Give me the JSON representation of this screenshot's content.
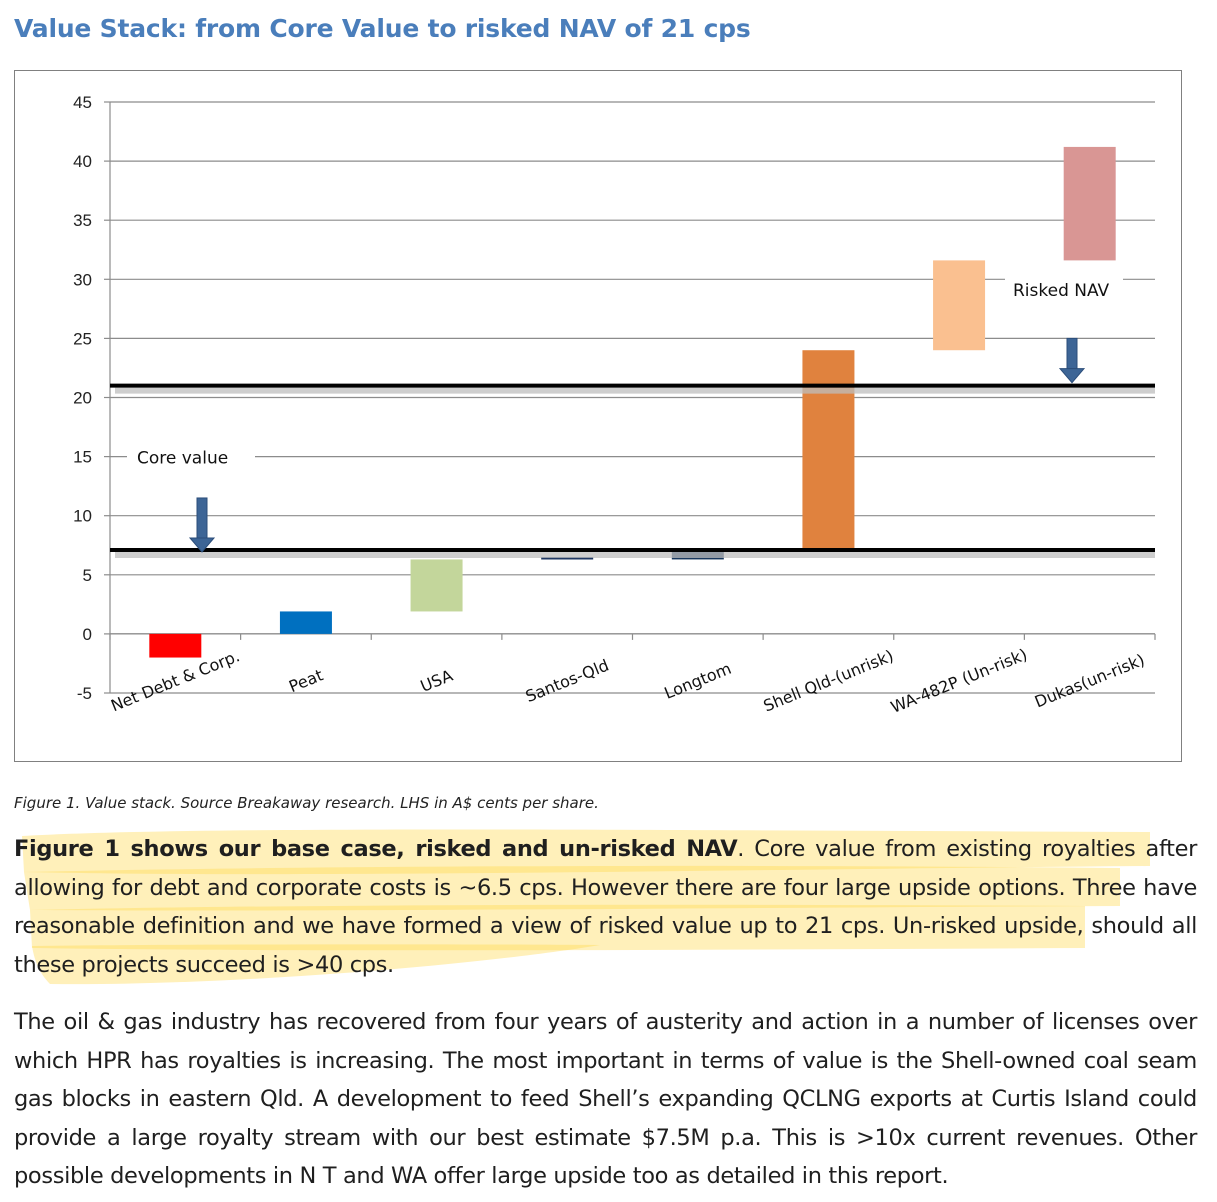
{
  "title": "Value Stack: from Core Value to risked NAV of 21 cps",
  "chart_data": {
    "type": "bar",
    "subtype": "floating-waterfall",
    "categories": [
      "Net Debt & Corp.",
      "Peat",
      "USA",
      "Santos-Qld",
      "Longtom",
      "Shell Qld-(unrisk)",
      "WA-482P (Un-risk)",
      "Dukas(un-risk)"
    ],
    "ranges": [
      [
        -2.0,
        0.0
      ],
      [
        0.0,
        1.9
      ],
      [
        1.9,
        6.3
      ],
      [
        6.3,
        6.5
      ],
      [
        6.3,
        7.2
      ],
      [
        7.2,
        24.0
      ],
      [
        24.0,
        31.6
      ],
      [
        31.6,
        41.2
      ]
    ],
    "colors": [
      "#ff0000",
      "#0070c0",
      "#c3d69b",
      "#1f3864",
      "#17375e",
      "#e0823e",
      "#fac090",
      "#d99694"
    ],
    "ylim": [
      -5,
      45
    ],
    "yticks": [
      -5,
      0,
      5,
      10,
      15,
      20,
      25,
      30,
      35,
      40,
      45
    ],
    "grid": true,
    "reference_lines": [
      {
        "label": "Core value",
        "y": 7.1
      },
      {
        "label": "Risked NAV",
        "y": 21.0
      }
    ],
    "xlabel": "",
    "ylabel": ""
  },
  "caption": "Figure 1. Value stack. Source Breakaway research. LHS in A$ cents per share.",
  "para1_bold": "Figure 1 shows our base case, risked and un-risked NAV",
  "para1_rest": ". Core value from existing royalties after allowing for debt and corporate costs is ~6.5 cps. However there are four large upside options. Three have reasonable definition and we have formed a view of risked value up to 21 cps. Un-risked upside, should all these projects succeed is >40 cps.",
  "para2": "The oil & gas industry has recovered from four years of austerity and action in a number of licenses over which HPR has royalties is increasing. The most important in terms of value is the Shell-owned coal seam gas blocks in eastern Qld.  A development to feed Shell’s expanding QCLNG exports at Curtis Island could provide a large royalty stream with our best estimate $7.5M p.a. This is >10x current revenues. Other possible developments in N T and WA offer large upside too as detailed in this report.",
  "colors": {
    "title": "#4a7ebb",
    "highlight": "#ffd84a",
    "arrow": "#3d6596"
  }
}
